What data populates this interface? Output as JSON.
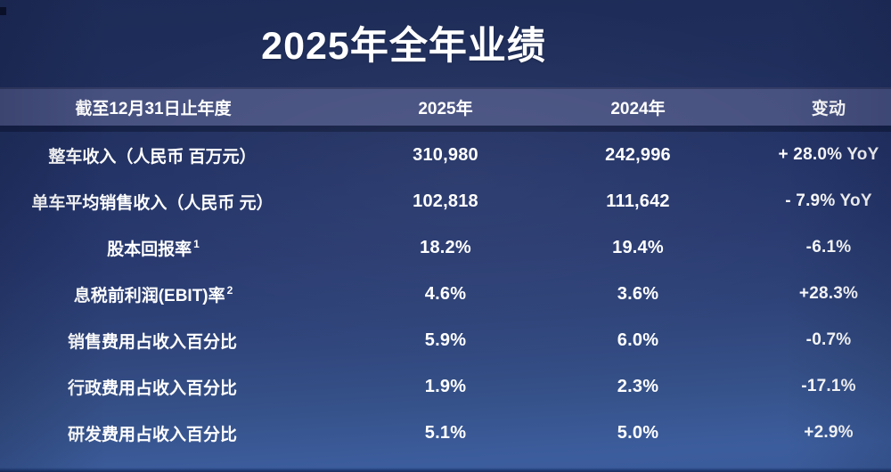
{
  "chart_data": {
    "type": "table",
    "title": "2025年全年业绩",
    "columns": [
      "截至12月31日止年度",
      "2025年",
      "2024年",
      "变动"
    ],
    "rows": [
      {
        "label": "整车收入（人民币 百万元）",
        "sup": "",
        "v2025": "310,980",
        "v2024": "242,996",
        "change": "+ 28.0% YoY"
      },
      {
        "label": "单车平均销售收入（人民币 元）",
        "sup": "",
        "v2025": "102,818",
        "v2024": "111,642",
        "change": "- 7.9% YoY"
      },
      {
        "label": "股本回报率",
        "sup": "1",
        "v2025": "18.2%",
        "v2024": "19.4%",
        "change": "-6.1%"
      },
      {
        "label": "息税前利润(EBIT)率",
        "sup": "2",
        "v2025": "4.6%",
        "v2024": "3.6%",
        "change": "+28.3%"
      },
      {
        "label": "销售费用占收入百分比",
        "sup": "",
        "v2025": "5.9%",
        "v2024": "6.0%",
        "change": "-0.7%"
      },
      {
        "label": "行政费用占收入百分比",
        "sup": "",
        "v2025": "1.9%",
        "v2024": "2.3%",
        "change": "-17.1%"
      },
      {
        "label": "研发费用占收入百分比",
        "sup": "",
        "v2025": "5.1%",
        "v2024": "5.0%",
        "change": "+2.9%"
      }
    ]
  },
  "colors": {
    "background_top": "#1d2b57",
    "background_bottom": "#3c5d9d",
    "header_band": "#475180",
    "band_shadow": "#141f45",
    "text": "#ffffff"
  }
}
